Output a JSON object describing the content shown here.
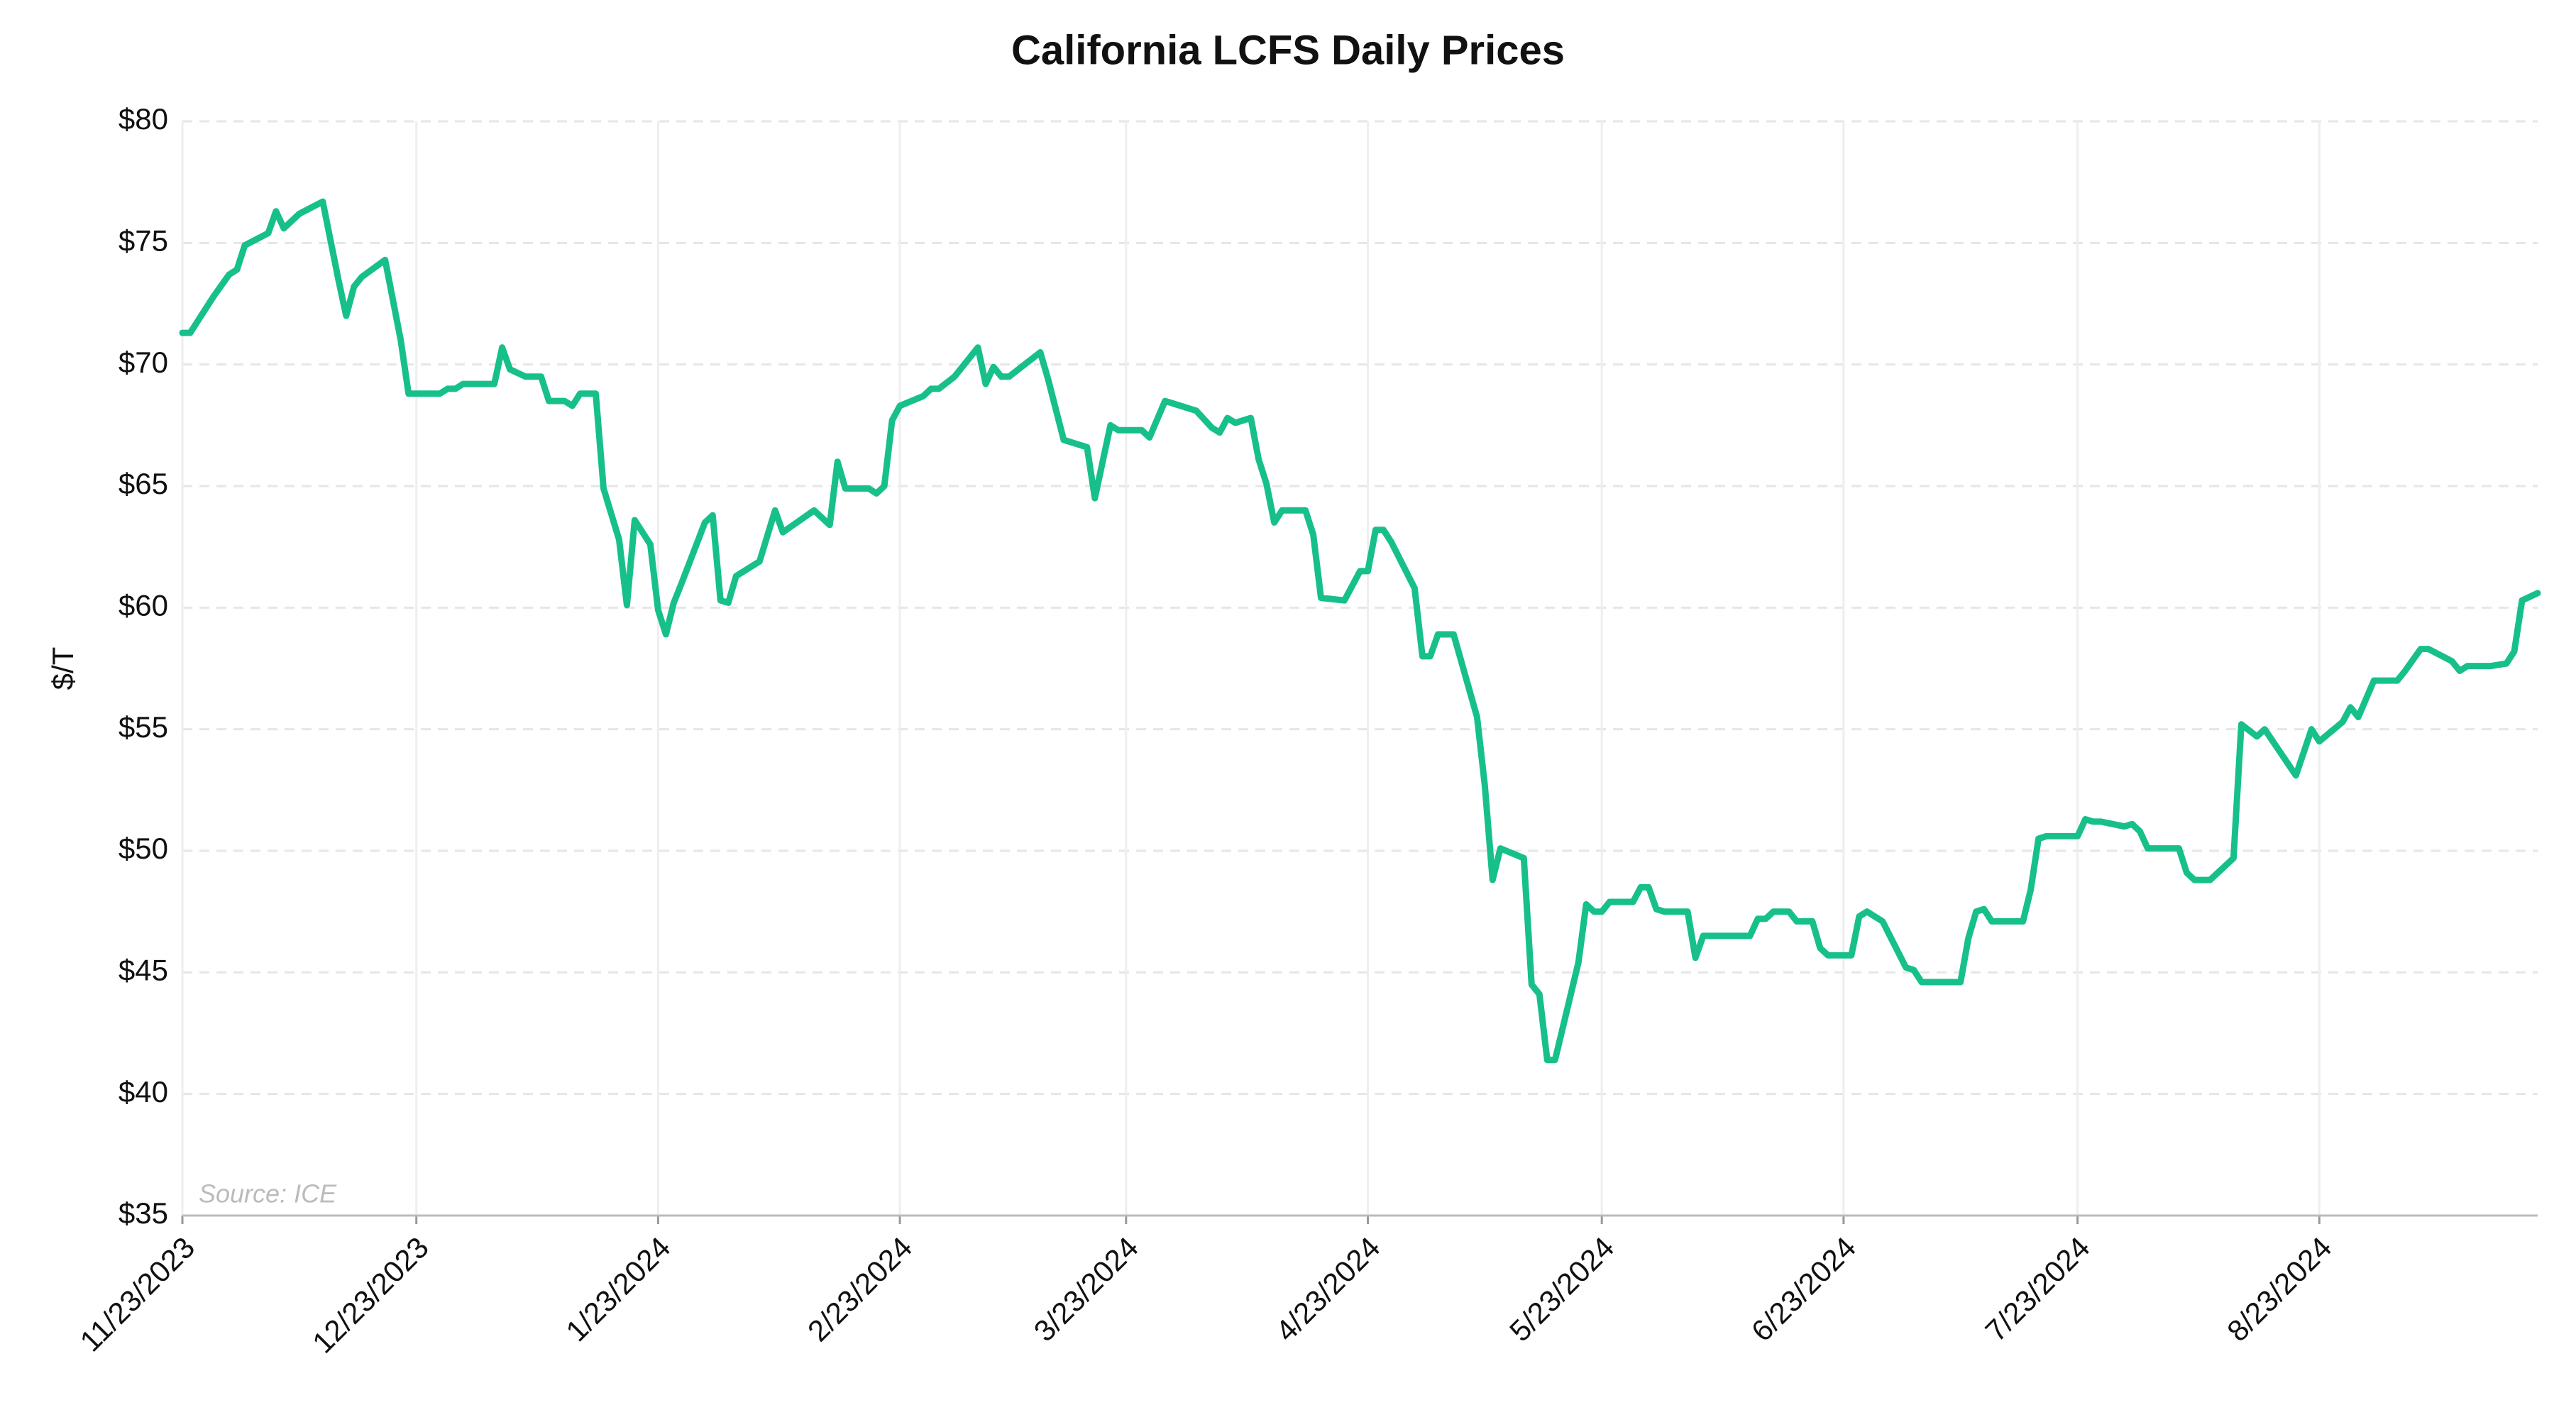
{
  "chart_data": {
    "type": "line",
    "title": "California LCFS Daily Prices",
    "y_label": "$/T",
    "source": "Source: ICE",
    "x": [
      "11/23/2023",
      "11/24/2023",
      "11/27/2023",
      "11/29/2023",
      "11/30/2023",
      "12/1/2023",
      "12/4/2023",
      "12/5/2023",
      "12/6/2023",
      "12/8/2023",
      "12/11/2023",
      "12/13/2023",
      "12/14/2023",
      "12/15/2023",
      "12/16/2023",
      "12/19/2023",
      "12/21/2023",
      "12/22/2023",
      "12/26/2023",
      "12/27/2023",
      "12/28/2023",
      "12/29/2023",
      "1/2/2024",
      "1/3/2024",
      "1/4/2024",
      "1/6/2024",
      "1/8/2024",
      "1/9/2024",
      "1/11/2024",
      "1/12/2024",
      "1/13/2024",
      "1/15/2024",
      "1/16/2024",
      "1/18/2024",
      "1/19/2024",
      "1/20/2024",
      "1/22/2024",
      "1/23/2024",
      "1/24/2024",
      "1/25/2024",
      "1/26/2024",
      "1/29/2024",
      "1/30/2024",
      "1/31/2024",
      "2/1/2024",
      "2/2/2024",
      "2/5/2024",
      "2/7/2024",
      "2/8/2024",
      "2/12/2024",
      "2/14/2024",
      "2/15/2024",
      "2/16/2024",
      "2/19/2024",
      "2/20/2024",
      "2/21/2024",
      "2/22/2024",
      "2/23/2024",
      "2/26/2024",
      "2/27/2024",
      "2/28/2024",
      "3/1/2024",
      "3/4/2024",
      "3/5/2024",
      "3/6/2024",
      "3/7/2024",
      "3/8/2024",
      "3/12/2024",
      "3/13/2024",
      "3/15/2024",
      "3/18/2024",
      "3/19/2024",
      "3/21/2024",
      "3/22/2024",
      "3/25/2024",
      "3/26/2024",
      "3/28/2024",
      "4/1/2024",
      "4/3/2024",
      "4/4/2024",
      "4/5/2024",
      "4/6/2024",
      "4/8/2024",
      "4/9/2024",
      "4/10/2024",
      "4/11/2024",
      "4/12/2024",
      "4/15/2024",
      "4/16/2024",
      "4/17/2024",
      "4/20/2024",
      "4/22/2024",
      "4/23/2024",
      "4/24/2024",
      "4/25/2024",
      "4/26/2024",
      "4/29/2024",
      "4/30/2024",
      "5/1/2024",
      "5/2/2024",
      "5/4/2024",
      "5/7/2024",
      "5/8/2024",
      "5/9/2024",
      "5/10/2024",
      "5/13/2024",
      "5/14/2024",
      "5/15/2024",
      "5/16/2024",
      "5/17/2024",
      "5/20/2024",
      "5/21/2024",
      "5/22/2024",
      "5/23/2024",
      "5/24/2024",
      "5/27/2024",
      "5/28/2024",
      "5/29/2024",
      "5/30/2024",
      "5/31/2024",
      "6/3/2024",
      "6/4/2024",
      "6/5/2024",
      "6/11/2024",
      "6/12/2024",
      "6/13/2024",
      "6/14/2024",
      "6/16/2024",
      "6/17/2024",
      "6/19/2024",
      "6/20/2024",
      "6/21/2024",
      "6/24/2024",
      "6/25/2024",
      "6/26/2024",
      "6/28/2024",
      "7/1/2024",
      "7/2/2024",
      "7/3/2024",
      "7/8/2024",
      "7/9/2024",
      "7/10/2024",
      "7/11/2024",
      "7/12/2024",
      "7/16/2024",
      "7/17/2024",
      "7/18/2024",
      "7/19/2024",
      "7/23/2024",
      "7/24/2024",
      "7/25/2024",
      "7/26/2024",
      "7/29/2024",
      "7/30/2024",
      "7/31/2024",
      "8/1/2024",
      "8/5/2024",
      "8/6/2024",
      "8/7/2024",
      "8/9/2024",
      "8/12/2024",
      "8/13/2024",
      "8/15/2024",
      "8/16/2024",
      "8/20/2024",
      "8/22/2024",
      "8/23/2024",
      "8/26/2024",
      "8/27/2024",
      "8/28/2024",
      "8/30/2024",
      "9/2/2024",
      "9/3/2024",
      "9/5/2024",
      "9/6/2024",
      "9/9/2024",
      "9/10/2024",
      "9/11/2024",
      "9/14/2024",
      "9/16/2024",
      "9/17/2024",
      "9/18/2024",
      "9/20/2024"
    ],
    "series": [
      {
        "name": "LCFS",
        "color": "#17c08a",
        "values": [
          71.3,
          71.3,
          72.8,
          73.7,
          73.9,
          74.9,
          75.4,
          76.3,
          75.6,
          76.2,
          76.7,
          73.5,
          72.0,
          73.2,
          73.6,
          74.3,
          71.0,
          68.8,
          68.8,
          69.0,
          69.0,
          69.2,
          69.2,
          70.7,
          69.8,
          69.5,
          69.5,
          68.5,
          68.5,
          68.3,
          68.8,
          68.8,
          64.9,
          62.8,
          60.1,
          63.6,
          62.6,
          59.9,
          58.9,
          60.2,
          61.0,
          63.5,
          63.8,
          60.3,
          60.2,
          61.3,
          61.9,
          64.0,
          63.1,
          64.0,
          63.4,
          66.0,
          64.9,
          64.9,
          64.7,
          65.0,
          67.7,
          68.3,
          68.7,
          69.0,
          69.0,
          69.5,
          70.7,
          69.2,
          69.9,
          69.5,
          69.5,
          70.5,
          69.4,
          66.9,
          66.6,
          64.5,
          67.5,
          67.3,
          67.3,
          67.0,
          68.5,
          68.1,
          67.4,
          67.2,
          67.8,
          67.6,
          67.8,
          66.1,
          65.1,
          63.5,
          64.0,
          64.0,
          63.0,
          60.4,
          60.3,
          61.5,
          61.5,
          63.2,
          63.2,
          62.7,
          60.8,
          58.0,
          58.0,
          58.9,
          58.9,
          55.5,
          52.7,
          48.8,
          50.1,
          49.7,
          44.5,
          44.1,
          41.4,
          41.4,
          45.4,
          47.8,
          47.5,
          47.5,
          47.9,
          47.9,
          48.5,
          48.5,
          47.6,
          47.5,
          47.5,
          45.6,
          46.5,
          46.5,
          47.2,
          47.2,
          47.5,
          47.5,
          47.1,
          47.1,
          46.0,
          45.7,
          45.7,
          47.3,
          47.5,
          47.1,
          45.2,
          45.1,
          44.6,
          44.6,
          46.4,
          47.5,
          47.6,
          47.1,
          47.1,
          48.4,
          50.5,
          50.6,
          50.6,
          51.3,
          51.2,
          51.2,
          51.0,
          51.1,
          50.8,
          50.1,
          50.1,
          49.1,
          48.8,
          48.8,
          49.7,
          55.2,
          54.7,
          55.0,
          53.1,
          55.0,
          54.5,
          55.3,
          55.9,
          55.5,
          57.0,
          57.0,
          57.4,
          58.3,
          58.3,
          57.8,
          57.4,
          57.6,
          57.6,
          57.7,
          58.2,
          60.3,
          60.6
        ]
      }
    ],
    "xlim": [
      "11/23/2023",
      "9/20/2024"
    ],
    "xticks": [
      "11/23/2023",
      "12/23/2023",
      "1/23/2024",
      "2/23/2024",
      "3/23/2024",
      "4/23/2024",
      "5/23/2024",
      "6/23/2024",
      "7/23/2024",
      "8/23/2024"
    ],
    "ylim": [
      35,
      80
    ],
    "yticks": [
      {
        "value": 35,
        "label": "$35"
      },
      {
        "value": 40,
        "label": "$40"
      },
      {
        "value": 45,
        "label": "$45"
      },
      {
        "value": 50,
        "label": "$50"
      },
      {
        "value": 55,
        "label": "$55"
      },
      {
        "value": 60,
        "label": "$60"
      },
      {
        "value": 65,
        "label": "$65"
      },
      {
        "value": 70,
        "label": "$70"
      },
      {
        "value": 75,
        "label": "$75"
      },
      {
        "value": 80,
        "label": "$80"
      }
    ],
    "grid": true
  }
}
